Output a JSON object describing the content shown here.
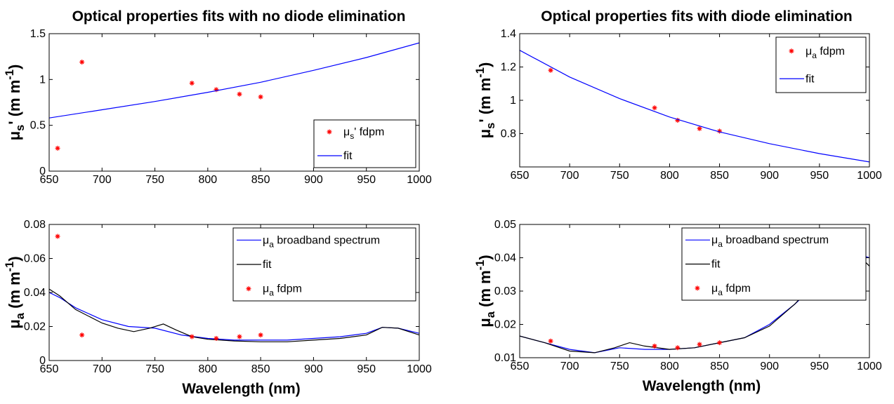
{
  "chart_data": [
    {
      "type": "scatter",
      "title": "Optical properties fits with no diode elimination",
      "xlabel": "",
      "ylabel": "μs' (mm-1)",
      "xlim": [
        650,
        1000
      ],
      "ylim": [
        0,
        1.5
      ],
      "xticks": [
        "650",
        "700",
        "750",
        "800",
        "850",
        "900",
        "950",
        "1000"
      ],
      "yticks": [
        "0",
        "0.5",
        "1",
        "1.5"
      ],
      "legend_position": "lower-right",
      "series": [
        {
          "name": "μs' fdpm",
          "style": "marker",
          "color": "#ff0000",
          "x": [
            658,
            681,
            785,
            808,
            830,
            850
          ],
          "y": [
            0.25,
            1.19,
            0.96,
            0.89,
            0.84,
            0.81
          ]
        },
        {
          "name": "fit",
          "style": "line",
          "color": "#0000ff",
          "x": [
            650,
            700,
            750,
            800,
            850,
            900,
            950,
            1000
          ],
          "y": [
            0.58,
            0.67,
            0.76,
            0.86,
            0.97,
            1.1,
            1.24,
            1.4
          ]
        }
      ]
    },
    {
      "type": "scatter",
      "title": "Optical properties fits with diode elimination",
      "xlabel": "",
      "ylabel": "μs' (mm-1)",
      "xlim": [
        650,
        1000
      ],
      "ylim": [
        0.6,
        1.4
      ],
      "xticks": [
        "650",
        "700",
        "750",
        "800",
        "850",
        "900",
        "950",
        "1000"
      ],
      "yticks": [
        "0.8",
        "1",
        "1.2",
        "1.4"
      ],
      "legend_position": "top-right",
      "series": [
        {
          "name": "μa fdpm",
          "style": "marker",
          "color": "#ff0000",
          "x": [
            681,
            785,
            808,
            830,
            850
          ],
          "y": [
            1.18,
            0.955,
            0.88,
            0.83,
            0.815
          ]
        },
        {
          "name": "fit",
          "style": "line",
          "color": "#0000ff",
          "x": [
            650,
            700,
            750,
            800,
            850,
            900,
            950,
            1000
          ],
          "y": [
            1.3,
            1.14,
            1.01,
            0.9,
            0.81,
            0.74,
            0.68,
            0.63
          ]
        }
      ]
    },
    {
      "type": "line",
      "title": "",
      "xlabel": "Wavelength (nm)",
      "ylabel": "μa (mm-1)",
      "xlim": [
        650,
        1000
      ],
      "ylim": [
        0,
        0.08
      ],
      "xticks": [
        "650",
        "700",
        "750",
        "800",
        "850",
        "900",
        "950",
        "1000"
      ],
      "yticks": [
        "0",
        "0.02",
        "0.04",
        "0.06",
        "0.08"
      ],
      "legend_position": "top-right",
      "series": [
        {
          "name": "μa broadband spectrum",
          "style": "line",
          "color": "#0000ff",
          "x": [
            650,
            660,
            675,
            700,
            725,
            750,
            775,
            800,
            825,
            850,
            875,
            900,
            925,
            950,
            965,
            980,
            1000
          ],
          "y": [
            0.04,
            0.037,
            0.031,
            0.024,
            0.02,
            0.019,
            0.015,
            0.013,
            0.012,
            0.012,
            0.012,
            0.013,
            0.014,
            0.016,
            0.0195,
            0.019,
            0.016
          ]
        },
        {
          "name": "fit",
          "style": "line",
          "color": "#000000",
          "x": [
            650,
            660,
            675,
            700,
            715,
            730,
            745,
            758,
            770,
            785,
            800,
            825,
            850,
            875,
            900,
            925,
            950,
            965,
            980,
            1000
          ],
          "y": [
            0.042,
            0.038,
            0.03,
            0.022,
            0.019,
            0.017,
            0.019,
            0.0215,
            0.018,
            0.014,
            0.0125,
            0.0115,
            0.011,
            0.011,
            0.012,
            0.013,
            0.015,
            0.0195,
            0.019,
            0.015
          ]
        },
        {
          "name": "μa fdpm",
          "style": "marker",
          "color": "#ff0000",
          "x": [
            658,
            681,
            785,
            808,
            830,
            850
          ],
          "y": [
            0.073,
            0.015,
            0.014,
            0.013,
            0.014,
            0.015
          ]
        }
      ]
    },
    {
      "type": "line",
      "title": "",
      "xlabel": "Wavelength (nm)",
      "ylabel": "μa (mm-1)",
      "xlim": [
        650,
        1000
      ],
      "ylim": [
        0.01,
        0.05
      ],
      "xticks": [
        "650",
        "700",
        "750",
        "800",
        "850",
        "900",
        "950",
        "1000"
      ],
      "yticks": [
        "0.01",
        "0.02",
        "0.03",
        "0.04",
        "0.05"
      ],
      "legend_position": "top-right",
      "series": [
        {
          "name": "μa broadband spectrum",
          "style": "line",
          "color": "#0000ff",
          "x": [
            650,
            675,
            700,
            725,
            750,
            775,
            800,
            825,
            850,
            875,
            900,
            925,
            950,
            965,
            975,
            985,
            1000
          ],
          "y": [
            0.0165,
            0.0145,
            0.0125,
            0.0115,
            0.013,
            0.0125,
            0.0125,
            0.013,
            0.0145,
            0.016,
            0.02,
            0.026,
            0.033,
            0.04,
            0.042,
            0.0415,
            0.04
          ]
        },
        {
          "name": "fit",
          "style": "line",
          "color": "#000000",
          "x": [
            650,
            675,
            700,
            725,
            745,
            760,
            775,
            800,
            825,
            850,
            875,
            900,
            925,
            950,
            962,
            975,
            985,
            1000
          ],
          "y": [
            0.0165,
            0.0145,
            0.012,
            0.0115,
            0.013,
            0.0145,
            0.0135,
            0.0125,
            0.013,
            0.0145,
            0.016,
            0.0195,
            0.026,
            0.034,
            0.042,
            0.043,
            0.042,
            0.0375
          ]
        },
        {
          "name": "μa fdpm",
          "style": "marker",
          "color": "#ff0000",
          "x": [
            681,
            785,
            808,
            830,
            850
          ],
          "y": [
            0.015,
            0.0135,
            0.013,
            0.014,
            0.0145
          ]
        }
      ]
    }
  ]
}
